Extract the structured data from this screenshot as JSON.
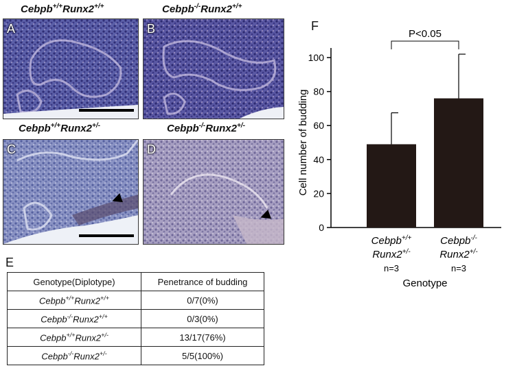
{
  "panels": [
    {
      "letter": "A",
      "gene1": "Cebpb",
      "sup1": "+/+",
      "gene2": "Runx2",
      "sup2": "+/+",
      "scale_bar": true,
      "arrowhead": false
    },
    {
      "letter": "B",
      "gene1": "Cebpb",
      "sup1": "-/-",
      "gene2": "Runx2",
      "sup2": "+/+",
      "scale_bar": false,
      "arrowhead": false
    },
    {
      "letter": "C",
      "gene1": "Cebpb",
      "sup1": "+/+",
      "gene2": "Runx2",
      "sup2": "+/-",
      "scale_bar": true,
      "arrowhead": true
    },
    {
      "letter": "D",
      "gene1": "Cebpb",
      "sup1": "-/-",
      "gene2": "Runx2",
      "sup2": "+/-",
      "scale_bar": false,
      "arrowhead": true
    }
  ],
  "table": {
    "letter": "E",
    "headers": [
      "Genotype(Diplotype)",
      "Penetrance of budding"
    ],
    "rows": [
      {
        "gene1": "Cebpb",
        "sup1": "+/+",
        "gene2": "Runx2",
        "sup2": "+/+",
        "value": "0/7(0%)"
      },
      {
        "gene1": "Cebpb",
        "sup1": "-/-",
        "gene2": "Runx2",
        "sup2": "+/+",
        "value": "0/3(0%)"
      },
      {
        "gene1": "Cebpb",
        "sup1": "+/+",
        "gene2": "Runx2",
        "sup2": "+/-",
        "value": "13/17(76%)"
      },
      {
        "gene1": "Cebpb",
        "sup1": "-/-",
        "gene2": "Runx2",
        "sup2": "+/-",
        "value": "5/5(100%)"
      }
    ]
  },
  "chart_data": {
    "type": "bar",
    "letter": "F",
    "ylabel": "Cell number of budding",
    "xlabel": "Genotype",
    "ylim": [
      0,
      100
    ],
    "yticks": [
      0,
      20,
      40,
      60,
      80,
      100
    ],
    "significance": "P<0.05",
    "categories": [
      {
        "gene1": "Cebpb",
        "sup1": "+/+",
        "gene2": "Runx2",
        "sup2": "+/-",
        "n": "n=3"
      },
      {
        "gene1": "Cebpb",
        "sup1": "-/-",
        "gene2": "Runx2",
        "sup2": "+/-",
        "n": "n=3"
      }
    ],
    "values": [
      49,
      76
    ],
    "errors": [
      18.5,
      26
    ],
    "bar_color": "#231815"
  }
}
